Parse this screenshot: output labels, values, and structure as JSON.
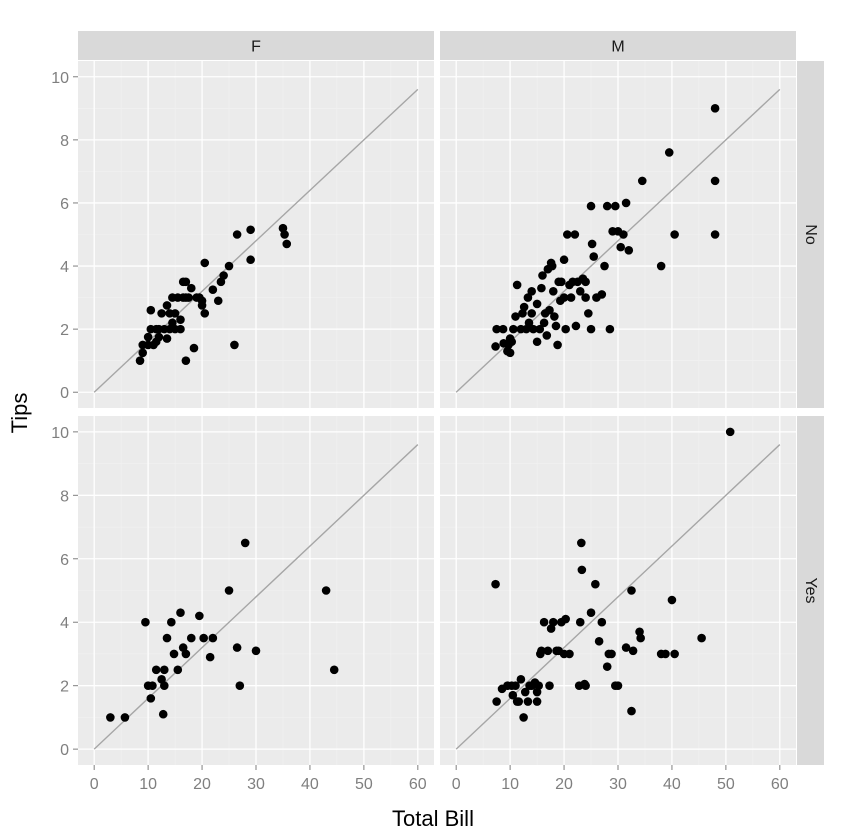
{
  "chart_data": {
    "type": "scatter",
    "xlabel": "Total Bill",
    "ylabel": "Tips",
    "xlim": [
      -3,
      63
    ],
    "ylim": [
      -0.5,
      10.5
    ],
    "xticks": [
      0,
      10,
      20,
      30,
      40,
      50,
      60
    ],
    "yticks": [
      0,
      2,
      4,
      6,
      8,
      10
    ],
    "facet_cols": [
      "F",
      "M"
    ],
    "facet_rows": [
      "No",
      "Yes"
    ],
    "reference_line": {
      "x": [
        0,
        60
      ],
      "y": [
        0,
        9.6
      ]
    },
    "grid": true,
    "colors": {
      "panel_bg": "#ebebeb",
      "grid": "#ffffff",
      "strip_bg": "#d9d9d9",
      "point": "#000000",
      "line": "#a6a6a6"
    },
    "panels": [
      {
        "col": "F",
        "row": "No",
        "points": [
          [
            8.5,
            1.0
          ],
          [
            9,
            1.25
          ],
          [
            9,
            1.5
          ],
          [
            10,
            1.5
          ],
          [
            10,
            1.75
          ],
          [
            10.5,
            2.0
          ],
          [
            10.5,
            2.6
          ],
          [
            11,
            1.5
          ],
          [
            11.5,
            1.6
          ],
          [
            11.5,
            2.0
          ],
          [
            12,
            1.75
          ],
          [
            12,
            2.0
          ],
          [
            12.5,
            2.5
          ],
          [
            13,
            2.0
          ],
          [
            13.5,
            2.75
          ],
          [
            13.5,
            1.7
          ],
          [
            14,
            2.0
          ],
          [
            14,
            2.5
          ],
          [
            14.5,
            3.0
          ],
          [
            14.5,
            2.2
          ],
          [
            15,
            2.0
          ],
          [
            15,
            2.5
          ],
          [
            15.5,
            3.0
          ],
          [
            16,
            2.3
          ],
          [
            16,
            2.0
          ],
          [
            16.5,
            3.0
          ],
          [
            16.5,
            3.5
          ],
          [
            17,
            3.0
          ],
          [
            17,
            3.5
          ],
          [
            17,
            1.0
          ],
          [
            17.5,
            3.0
          ],
          [
            18,
            3.3
          ],
          [
            18.5,
            1.4
          ],
          [
            19,
            3.0
          ],
          [
            19.5,
            3.0
          ],
          [
            20,
            2.75
          ],
          [
            20,
            2.9
          ],
          [
            20.5,
            2.5
          ],
          [
            20.5,
            4.1
          ],
          [
            22,
            3.25
          ],
          [
            23,
            2.9
          ],
          [
            23.5,
            3.5
          ],
          [
            24,
            3.7
          ],
          [
            25,
            4.0
          ],
          [
            26,
            1.5
          ],
          [
            26.5,
            5.0
          ],
          [
            29,
            4.2
          ],
          [
            29,
            5.15
          ],
          [
            35,
            5.2
          ],
          [
            35.3,
            5.0
          ],
          [
            35.7,
            4.7
          ]
        ]
      },
      {
        "col": "M",
        "row": "No",
        "points": [
          [
            7.3,
            1.45
          ],
          [
            7.5,
            2.0
          ],
          [
            8.7,
            2.0
          ],
          [
            8.8,
            1.55
          ],
          [
            9.5,
            1.3
          ],
          [
            9.7,
            1.5
          ],
          [
            10,
            1.25
          ],
          [
            10,
            1.7
          ],
          [
            10.3,
            1.6
          ],
          [
            10.6,
            2.0
          ],
          [
            11,
            2.4
          ],
          [
            11.3,
            3.4
          ],
          [
            12,
            2.0
          ],
          [
            12.3,
            2.5
          ],
          [
            12.6,
            2.7
          ],
          [
            13,
            2.0
          ],
          [
            13.3,
            3.0
          ],
          [
            13.5,
            2.2
          ],
          [
            14,
            3.2
          ],
          [
            14,
            2.5
          ],
          [
            14.3,
            2.0
          ],
          [
            15,
            1.6
          ],
          [
            15,
            2.8
          ],
          [
            15.5,
            2.0
          ],
          [
            15.8,
            3.3
          ],
          [
            16,
            3.7
          ],
          [
            16.3,
            2.2
          ],
          [
            16.5,
            2.5
          ],
          [
            16.8,
            1.8
          ],
          [
            17,
            3.9
          ],
          [
            17.3,
            2.6
          ],
          [
            17.6,
            4.1
          ],
          [
            17.8,
            4.0
          ],
          [
            18,
            3.2
          ],
          [
            18.2,
            2.4
          ],
          [
            18.5,
            2.1
          ],
          [
            18.8,
            1.5
          ],
          [
            19,
            3.5
          ],
          [
            19.3,
            2.9
          ],
          [
            19.5,
            3.5
          ],
          [
            20,
            4.2
          ],
          [
            20,
            3.0
          ],
          [
            20.3,
            2.0
          ],
          [
            20.6,
            5.0
          ],
          [
            21,
            3.4
          ],
          [
            21.3,
            3.0
          ],
          [
            21.6,
            3.5
          ],
          [
            22,
            5.0
          ],
          [
            22.2,
            2.1
          ],
          [
            22.5,
            3.5
          ],
          [
            23,
            3.2
          ],
          [
            23.5,
            3.6
          ],
          [
            24,
            3.5
          ],
          [
            24,
            3.0
          ],
          [
            24.5,
            2.5
          ],
          [
            25,
            2.0
          ],
          [
            25,
            5.9
          ],
          [
            25.2,
            4.7
          ],
          [
            25.5,
            4.3
          ],
          [
            26,
            3.0
          ],
          [
            27,
            3.1
          ],
          [
            27.5,
            4.0
          ],
          [
            28,
            5.9
          ],
          [
            28.5,
            2.0
          ],
          [
            29,
            5.1
          ],
          [
            29.5,
            5.9
          ],
          [
            30,
            5.1
          ],
          [
            30.5,
            4.6
          ],
          [
            31,
            5.0
          ],
          [
            31.5,
            6.0
          ],
          [
            32,
            4.5
          ],
          [
            34.5,
            6.7
          ],
          [
            38,
            4.0
          ],
          [
            39.5,
            7.6
          ],
          [
            40.5,
            5.0
          ],
          [
            48,
            5.0
          ],
          [
            48,
            6.7
          ],
          [
            48,
            9.0
          ]
        ]
      },
      {
        "col": "F",
        "row": "Yes",
        "points": [
          [
            3,
            1.0
          ],
          [
            5.7,
            1.0
          ],
          [
            9.5,
            4.0
          ],
          [
            10,
            2.0
          ],
          [
            10.5,
            1.6
          ],
          [
            10.8,
            2.0
          ],
          [
            11.5,
            2.5
          ],
          [
            12.5,
            2.2
          ],
          [
            12.8,
            1.1
          ],
          [
            13,
            2.0
          ],
          [
            13,
            2.5
          ],
          [
            13.5,
            3.5
          ],
          [
            14.3,
            4.0
          ],
          [
            14.8,
            3.0
          ],
          [
            15.5,
            2.5
          ],
          [
            16,
            4.3
          ],
          [
            16.5,
            3.2
          ],
          [
            17,
            3.0
          ],
          [
            18,
            3.5
          ],
          [
            19.5,
            4.2
          ],
          [
            20.3,
            3.5
          ],
          [
            21.5,
            2.9
          ],
          [
            22,
            3.5
          ],
          [
            25,
            5.0
          ],
          [
            26.5,
            3.2
          ],
          [
            27,
            2.0
          ],
          [
            28,
            6.5
          ],
          [
            30,
            3.1
          ],
          [
            43,
            5.0
          ],
          [
            44.5,
            2.5
          ]
        ]
      },
      {
        "col": "M",
        "row": "Yes",
        "points": [
          [
            7.3,
            5.2
          ],
          [
            7.5,
            1.5
          ],
          [
            8.5,
            1.9
          ],
          [
            9.5,
            2.0
          ],
          [
            10.3,
            2.0
          ],
          [
            10.5,
            1.7
          ],
          [
            11,
            2.0
          ],
          [
            11.3,
            1.5
          ],
          [
            11.6,
            1.5
          ],
          [
            12,
            2.2
          ],
          [
            12.5,
            1.0
          ],
          [
            12.8,
            1.8
          ],
          [
            13.3,
            1.5
          ],
          [
            13.6,
            2.0
          ],
          [
            14,
            2.0
          ],
          [
            14.6,
            2.1
          ],
          [
            15,
            1.8
          ],
          [
            15,
            1.5
          ],
          [
            15.3,
            2.0
          ],
          [
            15.6,
            3.0
          ],
          [
            15.8,
            3.1
          ],
          [
            16.3,
            4.0
          ],
          [
            17,
            3.1
          ],
          [
            17.3,
            2.0
          ],
          [
            17.6,
            3.8
          ],
          [
            18,
            4.0
          ],
          [
            18.6,
            3.1
          ],
          [
            19,
            3.1
          ],
          [
            19.5,
            4.0
          ],
          [
            20,
            3.0
          ],
          [
            20.3,
            4.1
          ],
          [
            21,
            3.0
          ],
          [
            22.8,
            2.0
          ],
          [
            23,
            4.0
          ],
          [
            23.2,
            6.5
          ],
          [
            23.3,
            5.65
          ],
          [
            23.8,
            2.05
          ],
          [
            24,
            2.0
          ],
          [
            25,
            4.3
          ],
          [
            25.8,
            5.2
          ],
          [
            26.5,
            3.4
          ],
          [
            27,
            4.0
          ],
          [
            28,
            2.6
          ],
          [
            28.3,
            3.0
          ],
          [
            28.8,
            3.0
          ],
          [
            29.5,
            2.0
          ],
          [
            30,
            2.0
          ],
          [
            31.5,
            3.2
          ],
          [
            32.5,
            1.2
          ],
          [
            32.5,
            5.0
          ],
          [
            32.8,
            3.1
          ],
          [
            34,
            3.7
          ],
          [
            34.2,
            3.5
          ],
          [
            38,
            3.0
          ],
          [
            38.8,
            3.0
          ],
          [
            40,
            4.7
          ],
          [
            40.5,
            3.0
          ],
          [
            45.5,
            3.5
          ],
          [
            50.8,
            10.0
          ]
        ]
      }
    ]
  }
}
